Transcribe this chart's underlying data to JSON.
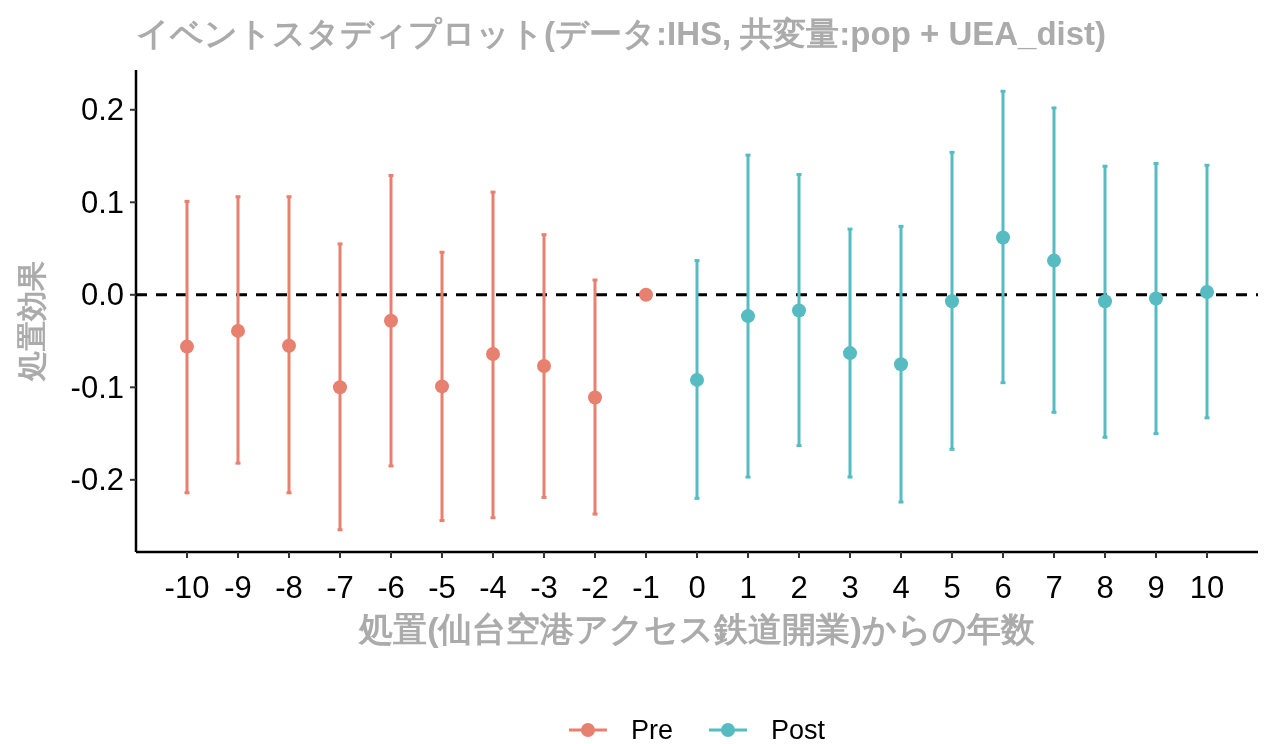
{
  "chart_data": {
    "type": "scatter",
    "title": "イベントスタディプロット(データ:IHS, 共変量:pop + UEA_dist)",
    "xlabel": "処置(仙台空港アクセス鉄道開業)からの年数",
    "ylabel": "処置効果",
    "xlim": [
      -11,
      11
    ],
    "xticks": [
      -10,
      -9,
      -8,
      -7,
      -6,
      -5,
      -4,
      -3,
      -2,
      -1,
      0,
      1,
      2,
      3,
      4,
      5,
      6,
      7,
      8,
      9,
      10
    ],
    "ylim": [
      -0.278,
      0.243
    ],
    "yticks": [
      -0.2,
      -0.1,
      {
        "value": 0,
        "label": "0.0"
      },
      0.1,
      0.2
    ],
    "marker": "circle",
    "legend": "bottom",
    "ref_lines": [
      {
        "axis": "y",
        "value": 0,
        "color": "#000000",
        "line_style": "dashed"
      }
    ],
    "series": [
      {
        "name": "Pre",
        "color": "#e7806f",
        "x": [
          -10,
          -9,
          -8,
          -7,
          -6,
          -5,
          -4,
          -3,
          -2,
          -1
        ],
        "values": [
          -0.056,
          -0.039,
          -0.055,
          -0.1,
          -0.028,
          -0.099,
          -0.064,
          -0.077,
          -0.111,
          0
        ],
        "errors": [
          [
            -0.214,
            0.101
          ],
          [
            -0.182,
            0.106
          ],
          [
            -0.214,
            0.106
          ],
          [
            -0.254,
            0.055
          ],
          [
            -0.185,
            0.129
          ],
          [
            -0.244,
            0.046
          ],
          [
            -0.241,
            0.111
          ],
          [
            -0.219,
            0.065
          ],
          [
            -0.237,
            0.016
          ],
          null
        ]
      },
      {
        "name": "Post",
        "color": "#56bcc2",
        "x": [
          0,
          1,
          2,
          3,
          4,
          5,
          6,
          7,
          8,
          9,
          10
        ],
        "values": [
          -0.092,
          -0.023,
          -0.017,
          -0.063,
          -0.075,
          -0.007,
          0.062,
          0.037,
          -0.007,
          -0.004,
          0.003
        ],
        "errors": [
          [
            -0.22,
            0.037
          ],
          [
            -0.197,
            0.151
          ],
          [
            -0.163,
            0.13
          ],
          [
            -0.197,
            0.071
          ],
          [
            -0.224,
            0.074
          ],
          [
            -0.167,
            0.154
          ],
          [
            -0.095,
            0.22
          ],
          [
            -0.127,
            0.202
          ],
          [
            -0.154,
            0.139
          ],
          [
            -0.15,
            0.142
          ],
          [
            -0.133,
            0.14
          ]
        ]
      }
    ]
  }
}
